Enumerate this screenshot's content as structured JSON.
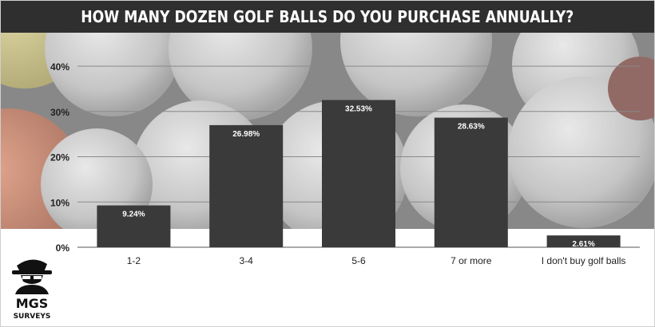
{
  "colors": {
    "title_bg": "#2f2f2f",
    "bar": "#3a3a3a",
    "bar_label": "#ffffff",
    "axis_text": "#222222"
  },
  "logo": {
    "icon": "golfer-hat-icon",
    "line1": "MGS",
    "line2": "SURVEYS"
  },
  "chart_data": {
    "type": "bar",
    "title": "HOW MANY DOZEN GOLF BALLS DO YOU PURCHASE ANNUALLY?",
    "categories": [
      "1-2",
      "3-4",
      "5-6",
      "7 or more",
      "I don't buy golf balls"
    ],
    "values": [
      9.24,
      26.98,
      32.53,
      28.63,
      2.61
    ],
    "value_labels": [
      "9.24%",
      "26.98%",
      "32.53%",
      "28.63%",
      "2.61%"
    ],
    "ylim": [
      0,
      40
    ],
    "yticks": [
      0,
      10,
      20,
      30,
      40
    ],
    "ytick_labels": [
      "0%",
      "10%",
      "20%",
      "30%",
      "40%"
    ],
    "grid": true,
    "legend": "none"
  }
}
